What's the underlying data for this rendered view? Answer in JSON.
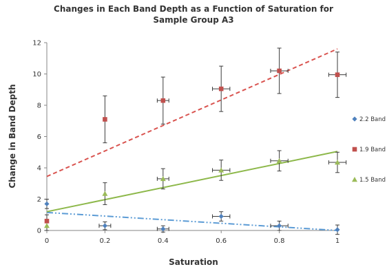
{
  "chart_data": {
    "type": "scatter",
    "title_line1": "Changes in Each Band Depth as a Function of Saturation for",
    "title_line2": "Sample Group A3",
    "xlabel": "Saturation",
    "ylabel": "Change in Band Depth",
    "xlim": [
      0,
      1
    ],
    "ylim": [
      0,
      12
    ],
    "xticks": [
      0,
      0.2,
      0.4,
      0.6,
      0.8,
      1
    ],
    "yticks": [
      0,
      2,
      4,
      6,
      8,
      10,
      12
    ],
    "xtick_labels": [
      "0",
      "0.2",
      "0.4",
      "0.6",
      "0.8",
      "1"
    ],
    "ytick_labels": [
      "0",
      "2",
      "4",
      "6",
      "8",
      "10",
      "12"
    ],
    "grid": false,
    "legend_position": "right",
    "series": [
      {
        "name": "2.2 Band",
        "marker": "diamond",
        "color": "#4f81bd",
        "trend_color": "#5b9bd5",
        "trend_style": "dash-dot-dot",
        "x": [
          0,
          0.2,
          0.4,
          0.6,
          0.8,
          1
        ],
        "y": [
          1.7,
          0.3,
          0.1,
          0.9,
          0.3,
          0.05
        ],
        "y_err": [
          0.3,
          0.25,
          0.2,
          0.3,
          0.3,
          0.3
        ],
        "x_err": [
          0,
          0.02,
          0.02,
          0.03,
          0.03,
          0
        ],
        "trend": {
          "y_at_xmin": 1.15,
          "y_at_xmax": 0.0
        }
      },
      {
        "name": "1.9 Band",
        "marker": "square",
        "color": "#c0504d",
        "trend_color": "#d9534f",
        "trend_style": "dashed",
        "x": [
          0,
          0.2,
          0.4,
          0.6,
          0.8,
          1
        ],
        "y": [
          0.6,
          7.1,
          8.3,
          9.05,
          10.2,
          9.95
        ],
        "y_err": [
          0.4,
          1.5,
          1.5,
          1.45,
          1.45,
          1.45
        ],
        "x_err": [
          0,
          0,
          0.02,
          0.03,
          0.03,
          0.03
        ],
        "trend": {
          "y_at_xmin": 3.45,
          "y_at_xmax": 11.6
        }
      },
      {
        "name": "1.5 Band",
        "marker": "triangle",
        "color": "#9bbb59",
        "trend_color": "#8db84a",
        "trend_style": "solid",
        "x": [
          0,
          0.2,
          0.4,
          0.6,
          0.8,
          1
        ],
        "y": [
          0.3,
          2.35,
          3.3,
          3.85,
          4.45,
          4.35
        ],
        "y_err": [
          0.3,
          0.7,
          0.65,
          0.65,
          0.65,
          0.65
        ],
        "x_err": [
          0,
          0,
          0.02,
          0.03,
          0.03,
          0.03
        ],
        "trend": {
          "y_at_xmin": 1.2,
          "y_at_xmax": 5.05
        }
      }
    ]
  }
}
